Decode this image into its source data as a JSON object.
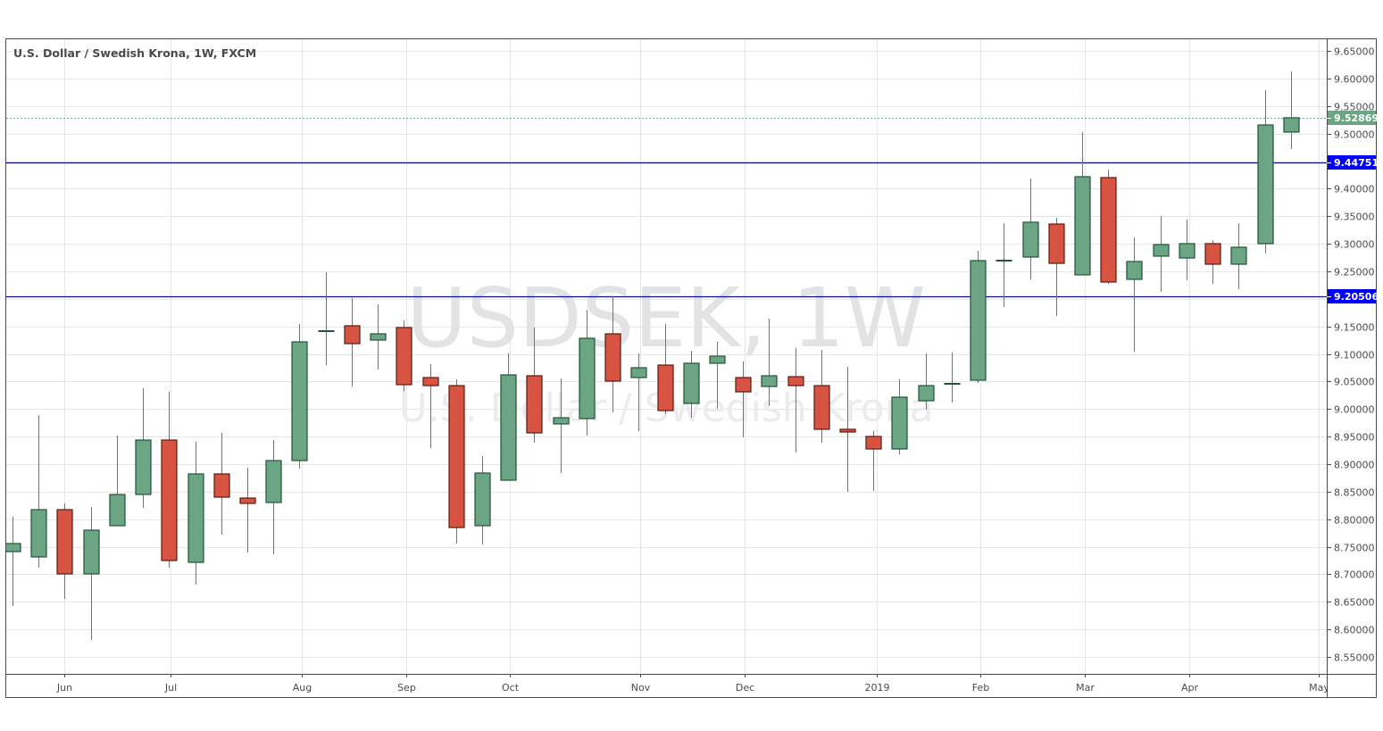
{
  "header": {
    "title": "U.S. Dollar / Swedish Krona, 1W, FXCM"
  },
  "watermark": {
    "symbol": "USDSEK, 1W",
    "description": "U.S. Dollar / Swedish Krona"
  },
  "colors": {
    "up_body": "#6ba583",
    "up_border": "#225437",
    "down_body": "#d75442",
    "down_border": "#5b1a13",
    "wick": "#737375",
    "horizontal_line": "#0c0c8c",
    "price_label_bg": "#0000ff",
    "last_price_bg": "#6ba583",
    "grid": "#e6e6e6"
  },
  "price_labels": {
    "last_price": "9.52869",
    "resistance": "9.44751",
    "support": "9.20506"
  },
  "chart_data": {
    "type": "candlestick",
    "title": "U.S. Dollar / Swedish Krona, 1W, FXCM",
    "xlabel": "",
    "ylabel": "",
    "ylim": [
      8.53,
      9.67
    ],
    "grid": true,
    "y_ticks": [
      "9.65000",
      "9.60000",
      "9.55000",
      "9.50000",
      "9.45000",
      "9.40000",
      "9.35000",
      "9.30000",
      "9.25000",
      "9.20000",
      "9.15000",
      "9.10000",
      "9.05000",
      "9.00000",
      "8.95000",
      "8.90000",
      "8.85000",
      "8.80000",
      "8.75000",
      "8.70000",
      "8.65000",
      "8.60000",
      "8.55000"
    ],
    "x_ticks": [
      "Jun",
      "Jul",
      "Aug",
      "Sep",
      "Oct",
      "Nov",
      "Dec",
      "2019",
      "Feb",
      "Mar",
      "Apr",
      "May"
    ],
    "horizontal_lines": [
      9.44751,
      9.20506
    ],
    "last_price": 9.52869,
    "candles": [
      {
        "o": 8.7412,
        "h": 8.8044,
        "l": 8.6424,
        "c": 8.7558
      },
      {
        "o": 8.7315,
        "h": 8.9891,
        "l": 8.712,
        "c": 8.8173
      },
      {
        "o": 8.8173,
        "h": 8.8287,
        "l": 8.6553,
        "c": 8.7007
      },
      {
        "o": 8.7007,
        "h": 8.8222,
        "l": 8.5808,
        "c": 8.7801
      },
      {
        "o": 8.7882,
        "h": 8.9518,
        "l": 8.7882,
        "c": 8.8449
      },
      {
        "o": 8.8449,
        "h": 9.0377,
        "l": 8.8206,
        "c": 8.9437
      },
      {
        "o": 8.9437,
        "h": 9.0312,
        "l": 8.712,
        "c": 8.725
      },
      {
        "o": 8.7217,
        "h": 8.9405,
        "l": 8.6812,
        "c": 8.8822
      },
      {
        "o": 8.8822,
        "h": 8.9567,
        "l": 8.772,
        "c": 8.84
      },
      {
        "o": 8.8384,
        "h": 8.8935,
        "l": 8.7396,
        "c": 8.8287
      },
      {
        "o": 8.8303,
        "h": 8.9437,
        "l": 8.7363,
        "c": 8.9064
      },
      {
        "o": 8.9064,
        "h": 9.1543,
        "l": 8.8919,
        "c": 9.1219
      },
      {
        "o": 9.1414,
        "h": 9.2483,
        "l": 9.0798,
        "c": 9.1414
      },
      {
        "o": 9.1511,
        "h": 9.2013,
        "l": 9.0409,
        "c": 9.1187
      },
      {
        "o": 9.1252,
        "h": 9.19,
        "l": 9.0717,
        "c": 9.1365
      },
      {
        "o": 9.1479,
        "h": 9.1608,
        "l": 9.0312,
        "c": 9.0442
      },
      {
        "o": 9.0571,
        "h": 9.0814,
        "l": 8.9291,
        "c": 9.0425
      },
      {
        "o": 9.0425,
        "h": 9.0539,
        "l": 8.7558,
        "c": 8.7849
      },
      {
        "o": 8.7882,
        "h": 8.9145,
        "l": 8.7542,
        "c": 8.8838
      },
      {
        "o": 8.8708,
        "h": 9.1009,
        "l": 8.8708,
        "c": 9.062
      },
      {
        "o": 9.0604,
        "h": 9.1479,
        "l": 8.9389,
        "c": 8.9567
      },
      {
        "o": 8.9729,
        "h": 9.0555,
        "l": 8.8838,
        "c": 8.9842
      },
      {
        "o": 8.9826,
        "h": 9.1803,
        "l": 8.9518,
        "c": 9.1284
      },
      {
        "o": 9.1365,
        "h": 9.2046,
        "l": 8.9939,
        "c": 9.0506
      },
      {
        "o": 9.0571,
        "h": 9.1009,
        "l": 8.9599,
        "c": 9.075
      },
      {
        "o": 9.0798,
        "h": 9.1543,
        "l": 8.9907,
        "c": 8.9972
      },
      {
        "o": 9.0102,
        "h": 9.1057,
        "l": 8.9842,
        "c": 9.0831
      },
      {
        "o": 9.0831,
        "h": 9.1219,
        "l": 9.0004,
        "c": 9.096
      },
      {
        "o": 9.0571,
        "h": 9.0863,
        "l": 8.9486,
        "c": 9.0312
      },
      {
        "o": 9.0409,
        "h": 9.1641,
        "l": 9.0053,
        "c": 9.0604
      },
      {
        "o": 9.0587,
        "h": 9.1106,
        "l": 8.921,
        "c": 9.0425
      },
      {
        "o": 9.0425,
        "h": 9.1074,
        "l": 8.9389,
        "c": 8.9632
      },
      {
        "o": 8.9632,
        "h": 9.0766,
        "l": 8.8497,
        "c": 8.9583
      },
      {
        "o": 8.9502,
        "h": 8.9599,
        "l": 8.8514,
        "c": 8.9275
      },
      {
        "o": 8.9275,
        "h": 9.0539,
        "l": 8.9178,
        "c": 9.0215
      },
      {
        "o": 9.015,
        "h": 9.1009,
        "l": 8.9988,
        "c": 9.0425
      },
      {
        "o": 9.0458,
        "h": 9.1025,
        "l": 9.0118,
        "c": 9.0458
      },
      {
        "o": 9.0523,
        "h": 9.2872,
        "l": 9.0474,
        "c": 9.2694
      },
      {
        "o": 9.2694,
        "h": 9.3374,
        "l": 9.1851,
        "c": 9.2694
      },
      {
        "o": 9.2759,
        "h": 9.4184,
        "l": 9.2354,
        "c": 9.3391
      },
      {
        "o": 9.3358,
        "h": 9.3472,
        "l": 9.1689,
        "c": 9.2645
      },
      {
        "o": 9.2435,
        "h": 9.5027,
        "l": 9.2435,
        "c": 9.4217
      },
      {
        "o": 9.4201,
        "h": 9.4346,
        "l": 9.2273,
        "c": 9.2305
      },
      {
        "o": 9.2354,
        "h": 9.3115,
        "l": 9.1041,
        "c": 9.2678
      },
      {
        "o": 9.2775,
        "h": 9.3504,
        "l": 9.2126,
        "c": 9.2985
      },
      {
        "o": 9.2742,
        "h": 9.3439,
        "l": 9.2337,
        "c": 9.3002
      },
      {
        "o": 9.3002,
        "h": 9.3067,
        "l": 9.2273,
        "c": 9.2629
      },
      {
        "o": 9.2629,
        "h": 9.3374,
        "l": 9.2175,
        "c": 9.2937
      },
      {
        "o": 9.3002,
        "h": 9.5788,
        "l": 9.2824,
        "c": 9.5157
      },
      {
        "o": 9.5027,
        "h": 9.6129,
        "l": 9.4719,
        "c": 9.5287
      }
    ]
  }
}
